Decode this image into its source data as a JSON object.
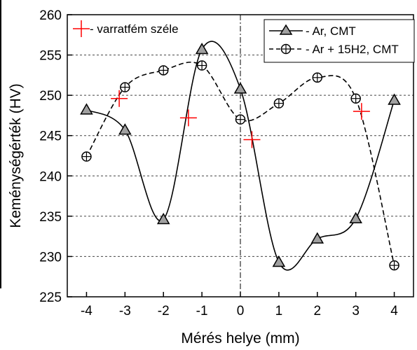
{
  "chart_data": {
    "type": "line",
    "xlabel": "Mérés helye (mm)",
    "ylabel": "Keménységérték (HV)",
    "xlim": [
      -4.5,
      4.5
    ],
    "ylim": [
      225,
      260
    ],
    "xticks": [
      -4,
      -3,
      -2,
      -1,
      0,
      1,
      2,
      3,
      4
    ],
    "yticks": [
      225,
      230,
      235,
      240,
      245,
      250,
      255,
      260
    ],
    "grid": "horizontal dashed",
    "vertical_reference_line_at_x": 0,
    "legend_position": "top-right",
    "series": [
      {
        "name": "Ar, CMT",
        "marker": "triangle",
        "line_style": "solid",
        "color": "#000000",
        "marker_fill": "#a0a0a0",
        "x": [
          -4,
          -3,
          -2,
          -1,
          0,
          1,
          2,
          3,
          4
        ],
        "y": [
          248.2,
          245.7,
          234.6,
          255.7,
          250.8,
          229.3,
          232.2,
          234.7,
          249.4
        ]
      },
      {
        "name": "Ar + 15H2, CMT",
        "marker": "circle-plus",
        "line_style": "dashed",
        "color": "#000000",
        "marker_fill": "#ffffff",
        "x": [
          -4,
          -3,
          -2,
          -1,
          0,
          1,
          2,
          3,
          4
        ],
        "y": [
          242.4,
          251.0,
          253.1,
          253.7,
          247.0,
          249.0,
          252.2,
          249.6,
          228.9
        ]
      }
    ],
    "annotation_series": {
      "name": "varratfém széle",
      "marker": "plus",
      "color": "#ff0000",
      "x": [
        -3.15,
        -1.35,
        0.3,
        3.15
      ],
      "y": [
        249.6,
        247.2,
        244.5,
        248.0
      ]
    }
  }
}
